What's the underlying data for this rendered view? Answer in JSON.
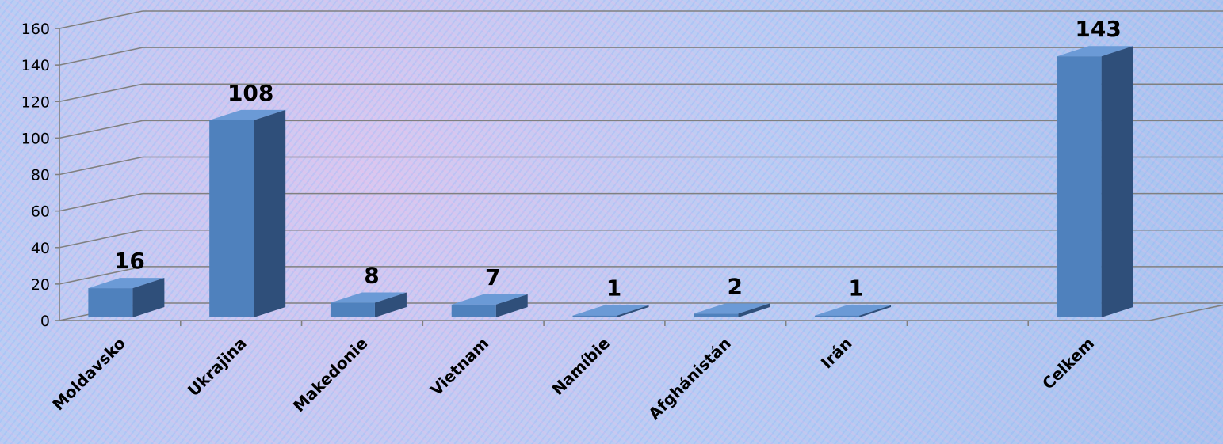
{
  "chart_data": {
    "type": "bar",
    "categories": [
      "Moldavsko",
      "Ukrajina",
      "Makedonie",
      "Vietnam",
      "Namíbie",
      "Afghánistán",
      "Irán",
      "",
      "Celkem"
    ],
    "values": [
      16,
      108,
      8,
      7,
      1,
      2,
      1,
      null,
      143
    ],
    "data_labels": [
      "16",
      "108",
      "8",
      "7",
      "1",
      "2",
      "1",
      "",
      "143"
    ],
    "ylim": [
      0,
      160
    ],
    "yticks": [
      0,
      20,
      40,
      60,
      80,
      100,
      120,
      140,
      160
    ],
    "grid": true,
    "three_d": true,
    "colors": {
      "front": "#4f81bd",
      "side": "#2f4f7a",
      "top": "#6b9ad6",
      "grid": "#808080"
    }
  }
}
